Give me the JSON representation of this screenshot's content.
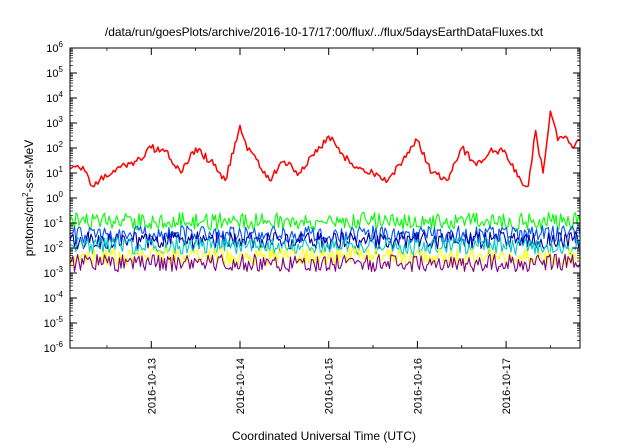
{
  "chart_data": {
    "type": "line",
    "title": "/data/run/goesPlots/archive/2016-10-17/17:00/flux/../flux/5daysEarthDataFluxes.txt",
    "xlabel": "Coordinated Universal Time (UTC)",
    "ylabel": {
      "base": "protons/cm",
      "exp": "2",
      "rest": "-s-sr-MeV"
    },
    "yscale": "log",
    "ylim": [
      1e-06,
      1000000
    ],
    "xlim": [
      "2016-10-12T02:00",
      "2016-10-17T20:00"
    ],
    "x_tick_labels": [
      "2016-10-13",
      "2016-10-14",
      "2016-10-15",
      "2016-10-16",
      "2016-10-17"
    ],
    "y_tick_labels": [
      {
        "base": "10",
        "exp": "-6"
      },
      {
        "base": "10",
        "exp": "-5"
      },
      {
        "base": "10",
        "exp": "-4"
      },
      {
        "base": "10",
        "exp": "-3"
      },
      {
        "base": "10",
        "exp": "-2"
      },
      {
        "base": "10",
        "exp": "-1"
      },
      {
        "base": "10",
        "exp": "0"
      },
      {
        "base": "10",
        "exp": "1"
      },
      {
        "base": "10",
        "exp": "2"
      },
      {
        "base": "10",
        "exp": "3"
      },
      {
        "base": "10",
        "exp": "4"
      },
      {
        "base": "10",
        "exp": "5"
      },
      {
        "base": "10",
        "exp": "6"
      }
    ],
    "grid": false,
    "series": [
      {
        "color": "#ff0000",
        "x": [
          "2016-10-12T02:00",
          "2016-10-12T04:00",
          "2016-10-12T06:00",
          "2016-10-12T08:00",
          "2016-10-12T10:00",
          "2016-10-12T12:00",
          "2016-10-12T16:00",
          "2016-10-12T20:00",
          "2016-10-13T00:00",
          "2016-10-13T04:00",
          "2016-10-13T08:00",
          "2016-10-13T12:00",
          "2016-10-13T16:00",
          "2016-10-13T20:00",
          "2016-10-14T00:00",
          "2016-10-14T02:00",
          "2016-10-14T04:00",
          "2016-10-14T08:00",
          "2016-10-14T12:00",
          "2016-10-14T16:00",
          "2016-10-14T20:00",
          "2016-10-15T00:00",
          "2016-10-15T04:00",
          "2016-10-15T08:00",
          "2016-10-15T12:00",
          "2016-10-15T16:00",
          "2016-10-15T20:00",
          "2016-10-16T00:00",
          "2016-10-16T04:00",
          "2016-10-16T08:00",
          "2016-10-16T12:00",
          "2016-10-16T16:00",
          "2016-10-16T20:00",
          "2016-10-17T00:00",
          "2016-10-17T04:00",
          "2016-10-17T06:00",
          "2016-10-17T08:00",
          "2016-10-17T10:00",
          "2016-10-17T12:00",
          "2016-10-17T14:00",
          "2016-10-17T16:00",
          "2016-10-17T18:00",
          "2016-10-17T20:00"
        ],
        "values": [
          15,
          20,
          12,
          3,
          5,
          7,
          20,
          30,
          100,
          80,
          10,
          100,
          30,
          5,
          800,
          80,
          50,
          5,
          30,
          10,
          50,
          300,
          50,
          15,
          10,
          5,
          30,
          200,
          10,
          5,
          100,
          20,
          100,
          60,
          5,
          3,
          500,
          10,
          3000,
          200,
          300,
          100,
          200
        ]
      },
      {
        "color": "#00ff00",
        "x": [
          "2016-10-12T02:00",
          "2016-10-17T20:00"
        ],
        "values": [
          0.12,
          0.12
        ]
      },
      {
        "color": "#0050ff",
        "x": [
          "2016-10-12T02:00",
          "2016-10-17T20:00"
        ],
        "values": [
          0.035,
          0.035
        ]
      },
      {
        "color": "#0000a0",
        "x": [
          "2016-10-12T02:00",
          "2016-10-17T20:00"
        ],
        "values": [
          0.02,
          0.02
        ]
      },
      {
        "color": "#00c8c8",
        "x": [
          "2016-10-12T02:00",
          "2016-10-17T20:00"
        ],
        "values": [
          0.012,
          0.012
        ]
      },
      {
        "color": "#ffff00",
        "x": [
          "2016-10-12T02:00",
          "2016-10-17T20:00"
        ],
        "values": [
          0.0045,
          0.0045
        ]
      },
      {
        "color": "#800080",
        "x": [
          "2016-10-12T02:00",
          "2016-10-17T20:00"
        ],
        "values": [
          0.0025,
          0.0025
        ]
      }
    ]
  }
}
